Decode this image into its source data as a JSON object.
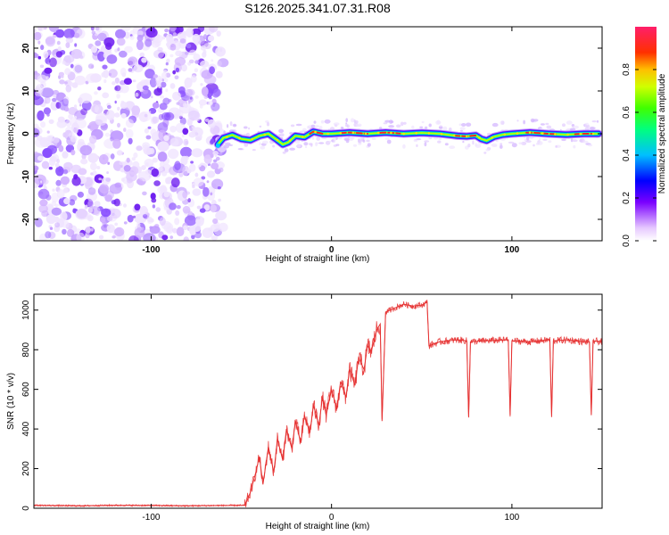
{
  "title": "S126.2025.341.07.31.R08",
  "chart_data": [
    {
      "type": "heatmap",
      "name": "spectrogram",
      "xlabel": "Height of straight line (km)",
      "ylabel": "Frequency (Hz)",
      "xlim": [
        -165,
        150
      ],
      "ylim": [
        -25,
        25
      ],
      "xticks": [
        -100,
        0,
        100
      ],
      "yticks": [
        -20,
        -10,
        0,
        10,
        20
      ],
      "noise_region_x": [
        -165,
        -60
      ],
      "ridge": {
        "x": [
          -63,
          -60,
          -55,
          -50,
          -45,
          -40,
          -35,
          -30,
          -27,
          -24,
          -20,
          -15,
          -10,
          -5,
          0,
          10,
          20,
          30,
          40,
          50,
          60,
          70,
          75,
          80,
          83,
          86,
          90,
          95,
          100,
          110,
          120,
          130,
          140,
          148
        ],
        "y": [
          -2.5,
          -1,
          -0.3,
          -1.2,
          -1.5,
          -0.5,
          0,
          -1.5,
          -2.5,
          -2,
          -0.5,
          -0.8,
          0.5,
          0,
          0,
          0.3,
          0,
          0.3,
          0,
          0.2,
          0,
          -0.5,
          -0.6,
          -0.4,
          -1.2,
          -1.6,
          -0.7,
          -0.2,
          0,
          0.3,
          0,
          -0.2,
          0,
          0
        ]
      },
      "colorbar": {
        "label": "Normalized spectral amplitude",
        "ticks": [
          "0.0",
          "0.2",
          "0.4",
          "0.6",
          "0.8"
        ],
        "tick_values": [
          0,
          0.2,
          0.4,
          0.6,
          0.8
        ],
        "range": [
          0,
          1
        ]
      }
    },
    {
      "type": "line",
      "name": "snr",
      "xlabel": "Height of straight line (km)",
      "ylabel": "SNR (10 * v/v)",
      "xlim": [
        -165,
        150
      ],
      "ylim": [
        0,
        1080
      ],
      "xticks": [
        -100,
        0,
        100
      ],
      "yticks": [
        0,
        200,
        400,
        600,
        800,
        1000
      ],
      "color": "#e53030",
      "series": [
        {
          "name": "SNR",
          "x": [
            -165,
            -140,
            -120,
            -100,
            -80,
            -60,
            -48,
            -45,
            -42,
            -40,
            -38,
            -35,
            -32,
            -30,
            -27,
            -25,
            -22,
            -20,
            -17,
            -15,
            -12,
            -10,
            -7,
            -5,
            -3,
            0,
            3,
            5,
            8,
            10,
            13,
            15,
            18,
            20,
            22,
            25,
            27,
            28,
            30,
            35,
            40,
            45,
            50,
            53,
            54,
            60,
            70,
            75,
            76,
            77,
            85,
            98,
            99,
            100,
            110,
            121,
            122,
            123,
            130,
            140,
            143,
            144,
            145,
            150
          ],
          "y": [
            15,
            12,
            15,
            14,
            12,
            14,
            15,
            80,
            180,
            260,
            120,
            310,
            180,
            350,
            240,
            400,
            300,
            440,
            330,
            470,
            380,
            520,
            420,
            560,
            470,
            600,
            500,
            640,
            560,
            700,
            620,
            760,
            700,
            820,
            790,
            900,
            930,
            440,
            990,
            1010,
            1030,
            1020,
            1025,
            1040,
            820,
            840,
            850,
            845,
            460,
            840,
            845,
            850,
            470,
            845,
            840,
            850,
            460,
            845,
            850,
            840,
            840,
            470,
            845,
            840
          ]
        }
      ]
    }
  ]
}
